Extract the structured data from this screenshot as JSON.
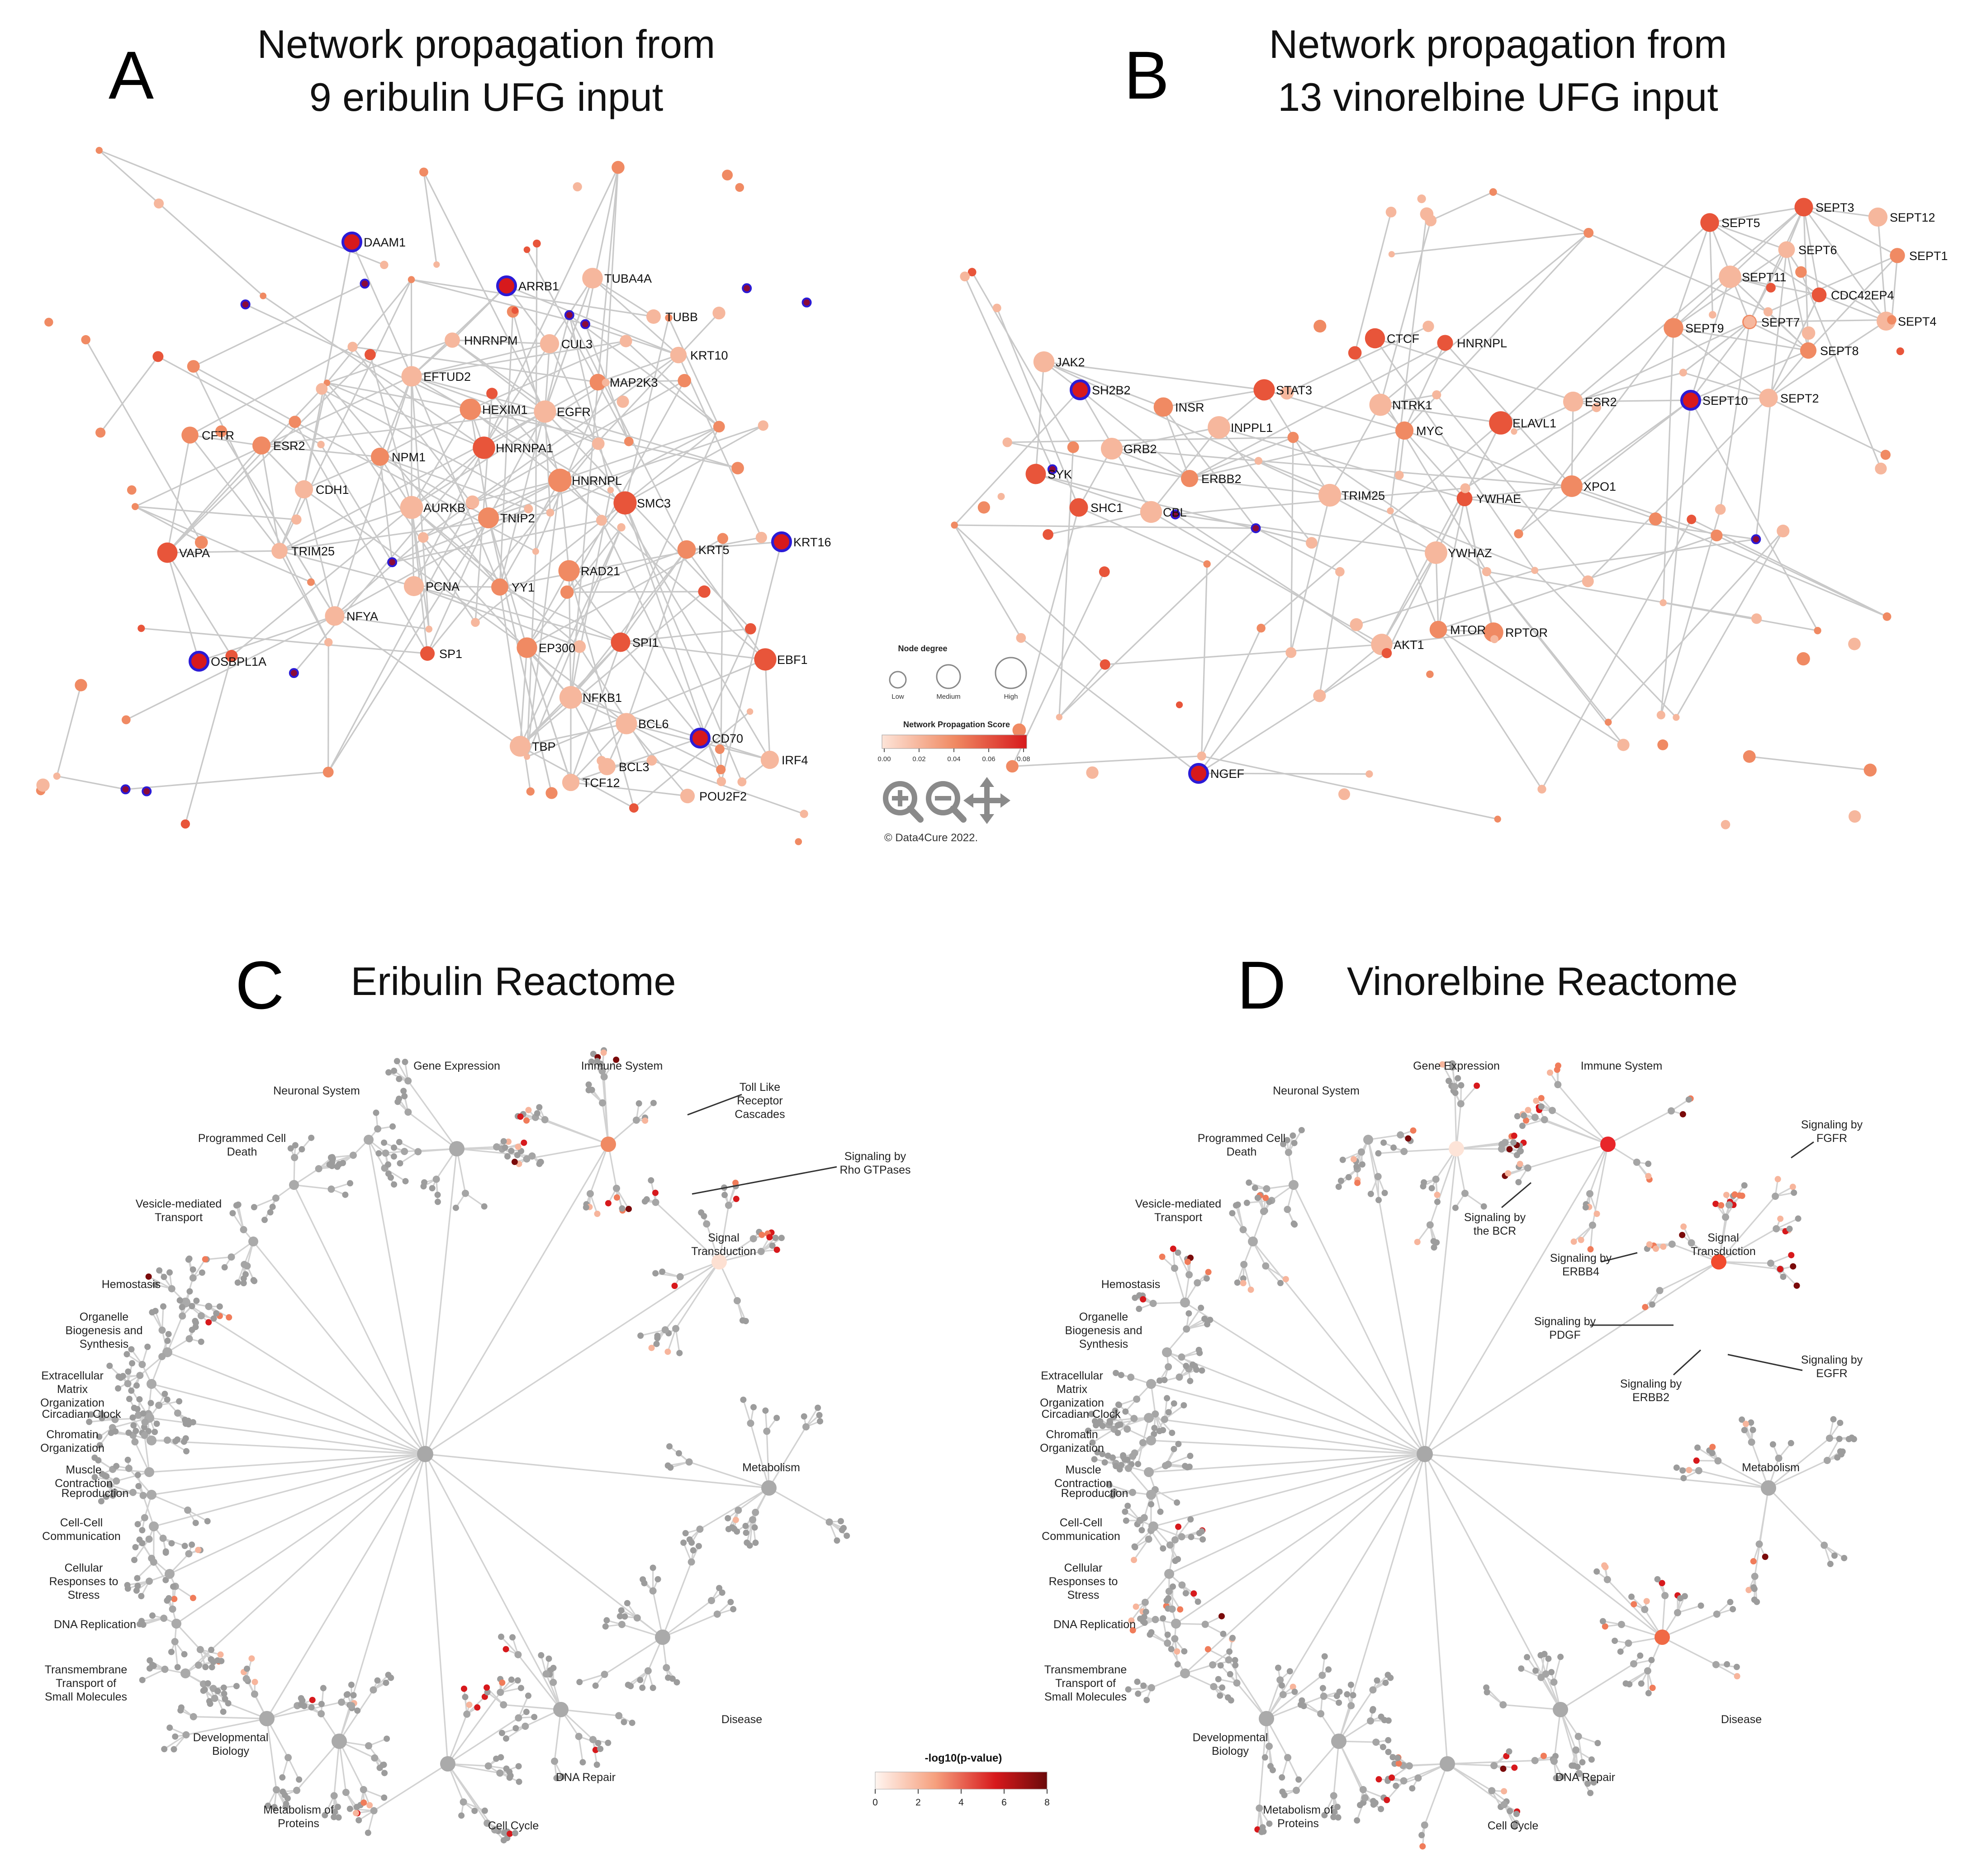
{
  "colors": {
    "edge": "#c9c9c9",
    "grey_node": "#9a9a9a",
    "light": "#f6b79d",
    "mid": "#f08a63",
    "strong": "#e8553a",
    "red": "#d7191c",
    "dark": "#7a0a0a",
    "ring": "#2b1bd6"
  },
  "panelA": {
    "letter": "A",
    "title_line1": "Network propagation from",
    "title_line2": "9 eribulin UFG input",
    "labels": [
      "DAAM1",
      "ARRB1",
      "TUBA4A",
      "TUBB",
      "HNRNPM",
      "CUL3",
      "KRT10",
      "EFTUD2",
      "MAP2K3",
      "HEXIM1",
      "EGFR",
      "CFTR",
      "ESR2",
      "NPM1",
      "HNRNPA1",
      "CDH1",
      "HNRNPL",
      "AURKB",
      "SMC3",
      "TNIP2",
      "KRT16",
      "VAPA",
      "TRIM25",
      "KRT5",
      "RAD21",
      "PCNA",
      "YY1",
      "NFYA",
      "SPI1",
      "SP1",
      "EP300",
      "EBF1",
      "OSBPL1A",
      "NFKB1",
      "BCL6",
      "CD70",
      "TBP",
      "IRF4",
      "BCL3",
      "TCF12",
      "POU2F2"
    ]
  },
  "panelB": {
    "letter": "B",
    "title_line1": "Network propagation from",
    "title_line2": "13 vinorelbine UFG input",
    "labels": [
      "SEPT3",
      "SEPT12",
      "SEPT5",
      "SEPT6",
      "SEPT1",
      "SEPT11",
      "CDC42EP4",
      "SEPT7",
      "SEPT4",
      "SEPT9",
      "SEPT8",
      "CTCF",
      "HNRNPL",
      "JAK2",
      "SH2B2",
      "INSR",
      "STAT3",
      "NTRK1",
      "ESR2",
      "SEPT10",
      "SEPT2",
      "INPPL1",
      "MYC",
      "ELAVL1",
      "GRB2",
      "SYK",
      "ERBB2",
      "TRIM25",
      "XPO1",
      "SHC1",
      "CBL",
      "YWHAE",
      "YWHAZ",
      "MTOR",
      "RPTOR",
      "AKT1",
      "NGEF"
    ]
  },
  "legend": {
    "node_degree": "Node degree",
    "low": "Low",
    "medium": "Medium",
    "high": "High",
    "score_title": "Network Propagation Score",
    "ticks": [
      "0.00",
      "0.02",
      "0.04",
      "0.06",
      "0.08"
    ],
    "copyright": "© Data4Cure 2022."
  },
  "panelC": {
    "letter": "C",
    "title": "Eribulin Reactome",
    "categories": [
      "Gene Expression",
      "Immune System",
      "Neuronal System",
      "Programmed Cell Death",
      "Vesicle-mediated Transport",
      "Hemostasis",
      "Organelle Biogenesis and Synthesis",
      "Extracellular Matrix Organization",
      "Circadian Clock",
      "Chromatin Organization",
      "Muscle Contraction",
      "Reproduction",
      "Cell-Cell Communication",
      "Cellular Responses to Stress",
      "DNA Replication",
      "Transmembrane Transport of Small Molecules",
      "Developmental Biology",
      "Metabolism of Proteins",
      "Cell Cycle",
      "DNA Repair",
      "Disease",
      "Metabolism",
      "Signal Transduction"
    ],
    "callouts": [
      "Toll Like Receptor Cascades",
      "Signaling by Rho GTPases"
    ]
  },
  "panelD": {
    "letter": "D",
    "title": "Vinorelbine Reactome",
    "callouts": [
      "Signaling by FGFR",
      "Signaling by the BCR",
      "Signaling by ERBB4",
      "Signaling by PDGF",
      "Signaling by EGFR",
      "Signaling by ERBB2"
    ]
  },
  "scale": {
    "title": "-log10(p-value)",
    "ticks": [
      "0",
      "2",
      "4",
      "6",
      "8"
    ]
  }
}
